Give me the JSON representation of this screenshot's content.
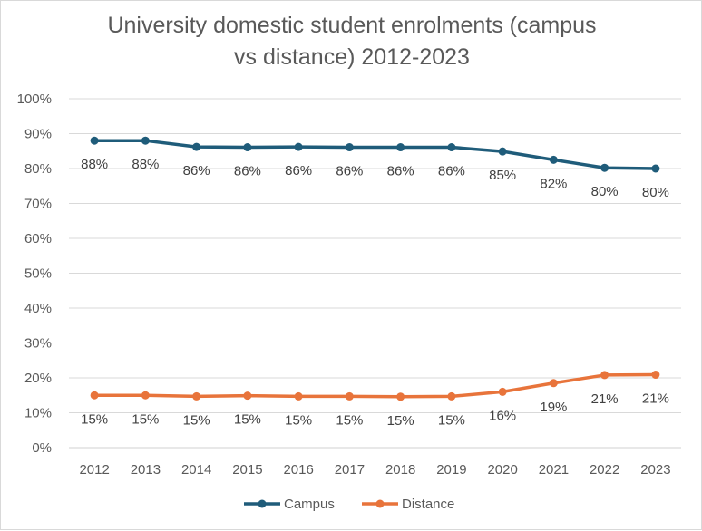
{
  "chart_data": {
    "type": "line",
    "title_lines": [
      "University domestic student enrolments (campus",
      "vs distance) 2012-2023"
    ],
    "xlabel": "",
    "ylabel": "",
    "x": [
      "2012",
      "2013",
      "2014",
      "2015",
      "2016",
      "2017",
      "2018",
      "2019",
      "2020",
      "2021",
      "2022",
      "2023"
    ],
    "ylim": [
      0,
      100
    ],
    "yticks": [
      "0%",
      "10%",
      "20%",
      "30%",
      "40%",
      "50%",
      "60%",
      "70%",
      "80%",
      "90%",
      "100%"
    ],
    "grid": "horizontal",
    "legend_position": "bottom",
    "series": [
      {
        "name": "Campus",
        "color": "#1f5c7a",
        "values": [
          88.0,
          88.0,
          86.2,
          86.1,
          86.2,
          86.1,
          86.1,
          86.1,
          84.9,
          82.5,
          80.2,
          80.0
        ],
        "labels": [
          "88%",
          "88%",
          "86%",
          "86%",
          "86%",
          "86%",
          "86%",
          "86%",
          "85%",
          "82%",
          "80%",
          "80%"
        ]
      },
      {
        "name": "Distance",
        "color": "#e8743b",
        "values": [
          15.0,
          15.0,
          14.7,
          14.9,
          14.7,
          14.7,
          14.6,
          14.7,
          16.0,
          18.5,
          20.8,
          20.9
        ],
        "labels": [
          "15%",
          "15%",
          "15%",
          "15%",
          "15%",
          "15%",
          "15%",
          "15%",
          "16%",
          "19%",
          "21%",
          "21%"
        ]
      }
    ]
  }
}
